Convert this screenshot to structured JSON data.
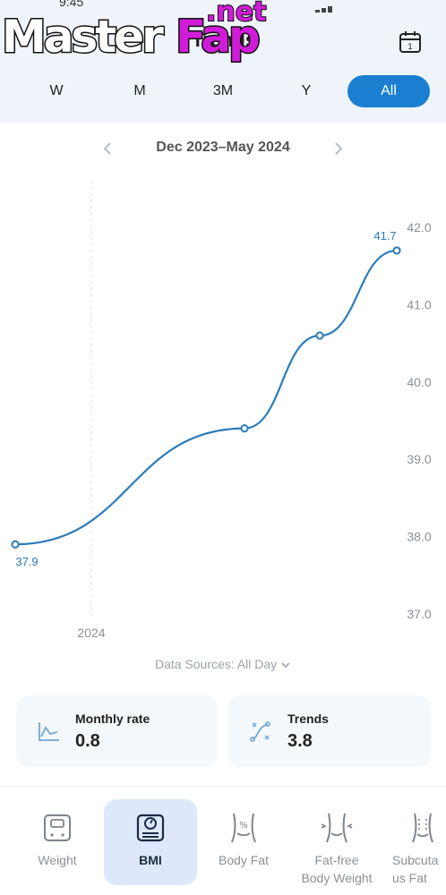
{
  "status": {
    "fragment": "9:45"
  },
  "watermark": {
    "text_master": "Master",
    "text_fap": "Fap",
    "text_net": ".net"
  },
  "header": {
    "title": "Trends",
    "calendar_day": "1"
  },
  "period_tabs": [
    {
      "label": "W",
      "active": false
    },
    {
      "label": "M",
      "active": false
    },
    {
      "label": "3M",
      "active": false
    },
    {
      "label": "Y",
      "active": false
    },
    {
      "label": "All",
      "active": true
    }
  ],
  "range": {
    "label": "Dec 2023–May 2024"
  },
  "chart_data": {
    "type": "line",
    "title": "",
    "xlabel": "",
    "ylabel": "",
    "x_tick_labels": [
      "2024"
    ],
    "y_ticks": [
      "42.0",
      "41.0",
      "40.0",
      "39.0",
      "38.0",
      "37.0"
    ],
    "ylim": [
      37.0,
      42.0
    ],
    "grid": false,
    "series": [
      {
        "values": [
          37.9,
          39.4,
          40.6,
          41.7
        ],
        "color": "#2b7cb8"
      }
    ],
    "data_labels": {
      "first": "37.9",
      "last": "41.7"
    }
  },
  "sources": {
    "label": "Data Sources: All Day"
  },
  "cards": [
    {
      "label": "Monthly rate",
      "value": "0.8",
      "icon": "line-chart-icon"
    },
    {
      "label": "Trends",
      "value": "3.8",
      "icon": "trend-icon"
    }
  ],
  "bottom_tabs": [
    {
      "label": "Weight",
      "icon": "scale-icon",
      "active": false
    },
    {
      "label": "BMI",
      "icon": "bmi-scale-icon",
      "active": true
    },
    {
      "label": "Body Fat",
      "icon": "body-fat-icon",
      "active": false
    },
    {
      "label": "Fat-free\nBody Weight",
      "label_line1": "Fat-free",
      "label_line2": "Body Weight",
      "icon": "fat-free-icon",
      "active": false
    },
    {
      "label_line1": "Subcuta",
      "label_line2": "us Fat",
      "icon": "subcutaneous-icon",
      "active": false
    }
  ],
  "colors": {
    "accent": "#1a7fd0",
    "line": "#2b7cb8",
    "header_bg": "#eef4f9",
    "active_tab_bg": "#dde8fb"
  }
}
